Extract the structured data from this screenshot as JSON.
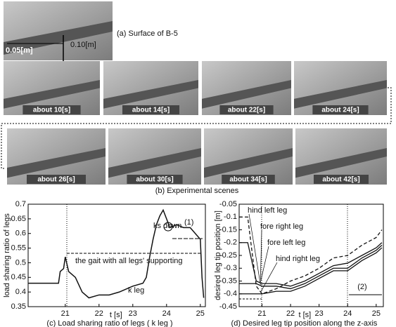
{
  "figure": {
    "surface_labels": [
      "0.10[m]",
      "0.05[m]"
    ],
    "surface_caption": "(a) Surface of B-5",
    "scenes": [
      "about 10[s]",
      "about 14[s]",
      "about 22[s]",
      "about 24[s]",
      "about 26[s]",
      "about 30[s]",
      "about 34[s]",
      "about 42[s]"
    ],
    "scenes_caption": "(b) Experimental scenes"
  },
  "chart_data": [
    {
      "type": "line",
      "caption": "(c) Load sharing ratio of legs ( k leg )",
      "x_label": "t [s]",
      "y_label": "load sharing ratio of legs",
      "xlim": [
        19.9,
        25.15
      ],
      "ylim": [
        0.35,
        0.7
      ],
      "xticks": [
        21,
        22,
        23,
        24,
        25
      ],
      "yticks": [
        0.35,
        0.4,
        0.45,
        0.5,
        0.55,
        0.6,
        0.65,
        0.7
      ],
      "x": [
        19.9,
        20.8,
        20.85,
        20.95,
        21.0,
        21.1,
        21.3,
        21.5,
        21.7,
        22.0,
        22.3,
        22.6,
        23.0,
        23.3,
        23.4,
        23.5,
        23.6,
        23.7,
        23.8,
        23.9,
        24.0,
        24.1,
        24.3,
        24.5,
        24.7,
        25.0,
        25.05,
        25.1
      ],
      "values": [
        0.43,
        0.43,
        0.47,
        0.48,
        0.52,
        0.47,
        0.45,
        0.4,
        0.38,
        0.39,
        0.39,
        0.4,
        0.42,
        0.43,
        0.45,
        0.52,
        0.58,
        0.63,
        0.66,
        0.68,
        0.65,
        0.62,
        0.63,
        0.62,
        0.62,
        0.58,
        0.45,
        0.38
      ],
      "color": "#111111",
      "annotations": [
        "ks down",
        "(1)",
        "the gait with all legs' supporting",
        "k leg"
      ]
    },
    {
      "type": "line",
      "caption": "(d) Desired leg tip position along the z-axis",
      "x_label": "t [s]",
      "y_label": "desired leg tip position [m]",
      "xlim": [
        20.2,
        25.25
      ],
      "ylim": [
        -0.45,
        -0.05
      ],
      "xticks": [
        21,
        22,
        23,
        24,
        25
      ],
      "yticks": [
        -0.45,
        -0.4,
        -0.35,
        -0.3,
        -0.25,
        -0.2,
        -0.15,
        -0.1,
        -0.05
      ],
      "x": [
        20.2,
        20.5,
        20.8,
        21.0,
        21.5,
        22.0,
        22.5,
        23.0,
        23.5,
        24.0,
        24.5,
        25.0,
        25.2
      ],
      "series": [
        {
          "name": "hind left leg",
          "color": "#111111",
          "style": "dashed",
          "values": [
            -0.1,
            -0.1,
            -0.37,
            -0.4,
            -0.38,
            -0.35,
            -0.33,
            -0.3,
            -0.26,
            -0.25,
            -0.21,
            -0.18,
            -0.15
          ]
        },
        {
          "name": "fore right leg",
          "color": "#111111",
          "style": "solid",
          "values": [
            -0.2,
            -0.2,
            -0.35,
            -0.36,
            -0.36,
            -0.37,
            -0.35,
            -0.32,
            -0.29,
            -0.28,
            -0.25,
            -0.22,
            -0.2
          ]
        },
        {
          "name": "fore left leg",
          "color": "#111111",
          "style": "solid",
          "values": [
            -0.36,
            -0.36,
            -0.36,
            -0.37,
            -0.37,
            -0.38,
            -0.36,
            -0.33,
            -0.3,
            -0.3,
            -0.26,
            -0.23,
            -0.21
          ]
        },
        {
          "name": "hind right leg",
          "color": "#111111",
          "style": "solid",
          "values": [
            -0.4,
            -0.4,
            -0.4,
            -0.4,
            -0.39,
            -0.39,
            -0.37,
            -0.34,
            -0.31,
            -0.31,
            -0.27,
            -0.24,
            -0.22
          ]
        }
      ],
      "annotations": [
        "(2)"
      ]
    }
  ]
}
